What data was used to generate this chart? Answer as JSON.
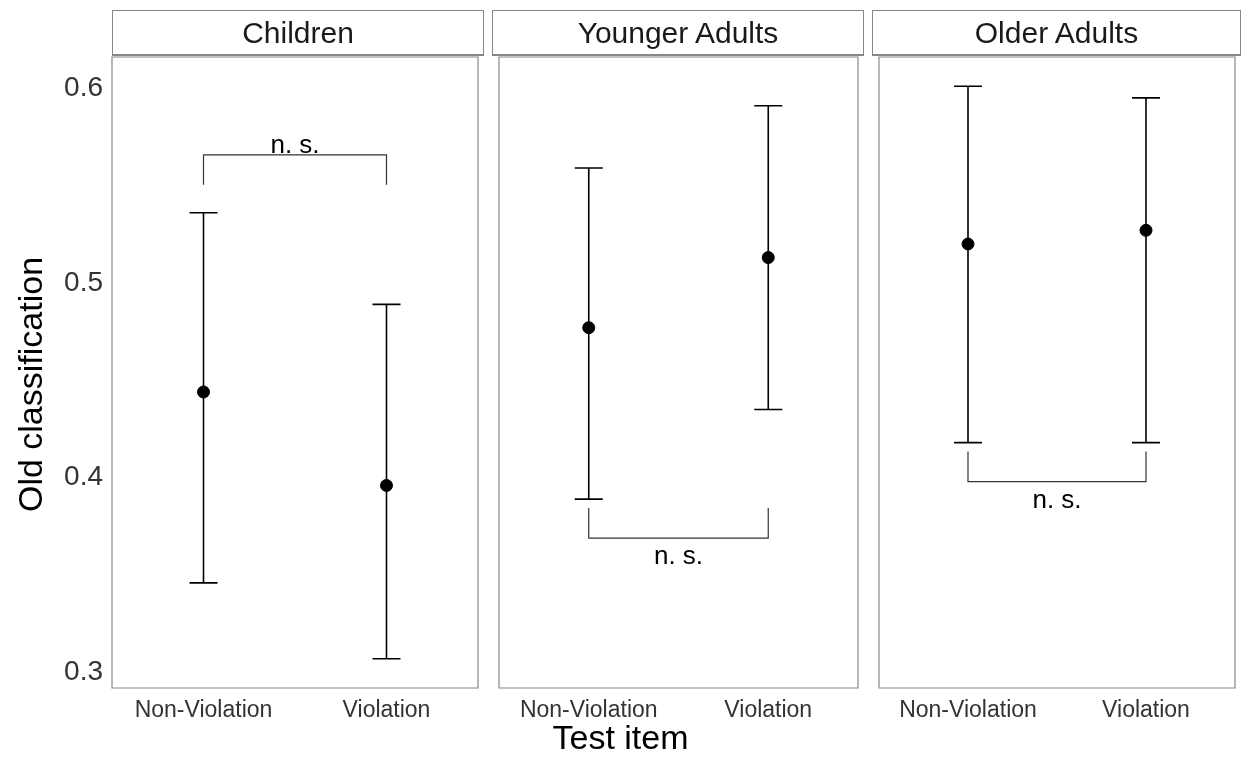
{
  "chart_data": [
    {
      "type": "scatter",
      "title": "Children",
      "ylabel": "Old classification",
      "categories": [
        "Non-Violation",
        "Violation"
      ],
      "values": [
        0.444,
        0.396
      ],
      "errors": [
        [
          0.346,
          0.536
        ],
        [
          0.307,
          0.489
        ]
      ],
      "color": "#000000",
      "marker": "circle",
      "grid": false,
      "ylim": [
        0.292,
        0.616
      ],
      "yticks": [
        0.3,
        0.4,
        0.5,
        0.6
      ],
      "annotations": [
        "n. s."
      ]
    },
    {
      "type": "scatter",
      "title": "Younger Adults",
      "xlabel": "Test item",
      "categories": [
        "Non-Violation",
        "Violation"
      ],
      "values": [
        0.477,
        0.513
      ],
      "errors": [
        [
          0.389,
          0.559
        ],
        [
          0.435,
          0.591
        ]
      ],
      "color": "#000000",
      "marker": "circle",
      "grid": false,
      "ylim": [
        0.292,
        0.616
      ],
      "yticks": [
        0.3,
        0.4,
        0.5,
        0.6
      ],
      "tick_labels": "x",
      "annotations": [
        "n. s."
      ]
    },
    {
      "type": "scatter",
      "title": "Older Adults",
      "categories": [
        "Non-Violation",
        "Violation"
      ],
      "values": [
        0.52,
        0.527
      ],
      "errors": [
        [
          0.418,
          0.601
        ],
        [
          0.418,
          0.595
        ]
      ],
      "color": "#000000",
      "marker": "circle",
      "grid": false,
      "ylim": [
        0.292,
        0.616
      ],
      "yticks": [
        0.3,
        0.4,
        0.5,
        0.6
      ],
      "tick_labels": "x",
      "annotations": [
        "n. s."
      ]
    }
  ]
}
